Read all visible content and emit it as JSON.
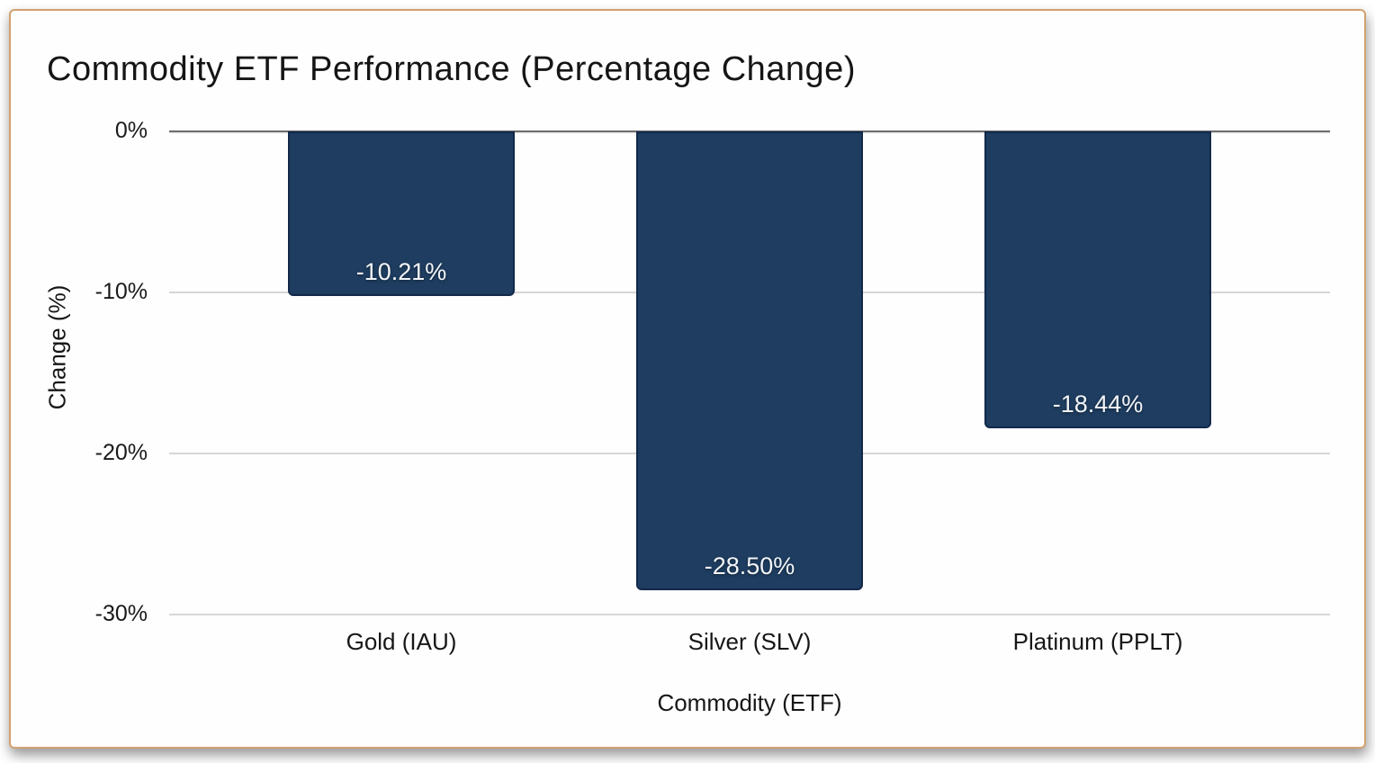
{
  "frame": {
    "border_color": "#d2a171",
    "background_color": "#fefefe"
  },
  "chart_data": {
    "type": "bar",
    "title": "Commodity ETF Performance (Percentage Change)",
    "xlabel": "Commodity (ETF)",
    "ylabel": "Change (%)",
    "categories": [
      "Gold (IAU)",
      "Silver (SLV)",
      "Platinum (PPLT)"
    ],
    "values": [
      -10.21,
      -28.5,
      -18.44
    ],
    "bar_labels": [
      "-10.21%",
      "-28.50%",
      "-18.44%"
    ],
    "ylim": [
      -30,
      0
    ],
    "yticks": [
      {
        "value": 0,
        "label": "0%"
      },
      {
        "value": -10,
        "label": "-10%"
      },
      {
        "value": -20,
        "label": "-20%"
      },
      {
        "value": -30,
        "label": "-30%"
      }
    ],
    "grid": "horizontal",
    "legend": "none",
    "bar_color": "#1e3d60",
    "bar_border_color": "#12294a",
    "bar_label_color": "#f2f5f8",
    "zero_line_color": "#6e6e6e",
    "gridline_color": "#d6d6d6"
  }
}
